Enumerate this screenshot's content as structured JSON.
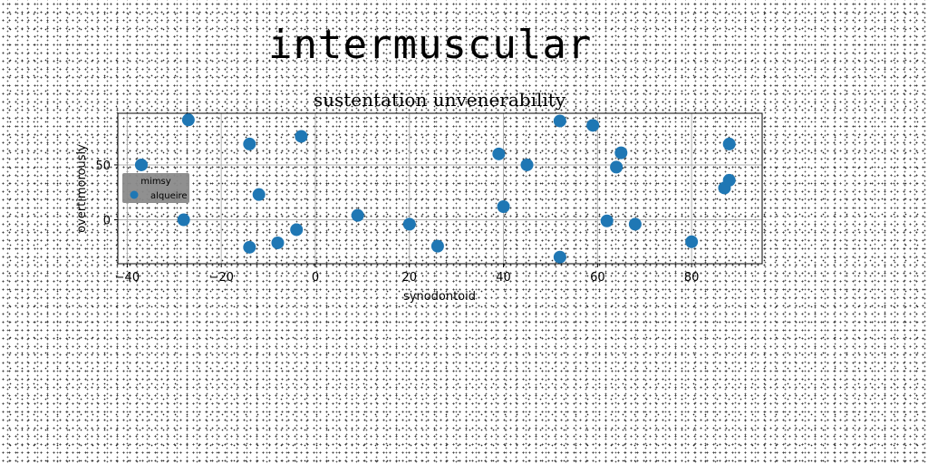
{
  "suptitle": "intermuscular",
  "chart_data": {
    "type": "scatter",
    "title": "sustentation unvenerability",
    "xlabel": "synodontoid",
    "ylabel": "overtimorously",
    "xlim": [
      -42,
      95
    ],
    "ylim": [
      -40,
      97
    ],
    "xticks": [
      -40,
      -20,
      0,
      20,
      40,
      60,
      80
    ],
    "yticks": [
      0,
      50
    ],
    "grid": true,
    "legend": {
      "title": "mimsy",
      "placement": "center-left"
    },
    "colors": {
      "series": "#1f77b4",
      "legend_bg": "#8a8a8a",
      "grid": "#b0b0b0"
    },
    "series": [
      {
        "name": "alqueire",
        "points": [
          {
            "x": -37,
            "y": 50
          },
          {
            "x": -27,
            "y": 91
          },
          {
            "x": -28,
            "y": 0
          },
          {
            "x": -14,
            "y": 69
          },
          {
            "x": -12,
            "y": 23
          },
          {
            "x": -14,
            "y": -25
          },
          {
            "x": -8,
            "y": -21
          },
          {
            "x": -4,
            "y": -9
          },
          {
            "x": -3,
            "y": 76
          },
          {
            "x": 9,
            "y": 4
          },
          {
            "x": 20,
            "y": -4
          },
          {
            "x": 26,
            "y": -24
          },
          {
            "x": 39,
            "y": 60
          },
          {
            "x": 40,
            "y": 12
          },
          {
            "x": 45,
            "y": 50
          },
          {
            "x": 52,
            "y": 90
          },
          {
            "x": 52,
            "y": -34
          },
          {
            "x": 59,
            "y": 86
          },
          {
            "x": 62,
            "y": -1
          },
          {
            "x": 64,
            "y": 48
          },
          {
            "x": 65,
            "y": 61
          },
          {
            "x": 68,
            "y": -4
          },
          {
            "x": 80,
            "y": -20
          },
          {
            "x": 87,
            "y": 29
          },
          {
            "x": 88,
            "y": 36
          },
          {
            "x": 88,
            "y": 69
          }
        ]
      }
    ]
  }
}
